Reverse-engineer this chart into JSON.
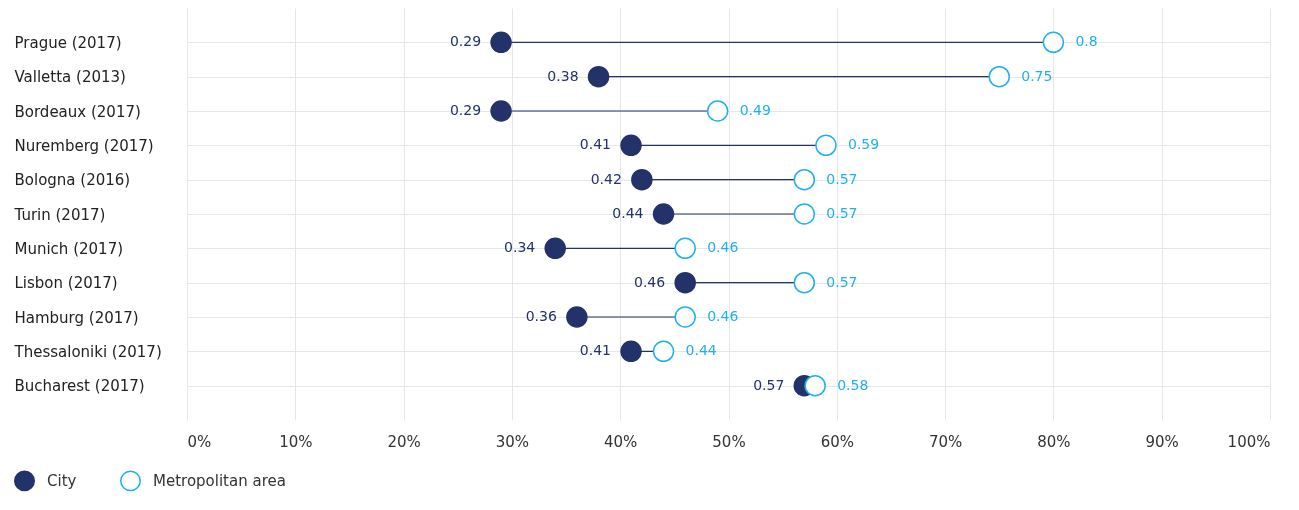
{
  "chart_data": {
    "type": "scatter",
    "orientation": "horizontal",
    "categories": [
      "Prague (2017)",
      "Valletta (2013)",
      "Bordeaux (2017)",
      "Nuremberg (2017)",
      "Bologna (2016)",
      "Turin (2017)",
      "Munich (2017)",
      "Lisbon (2017)",
      "Hamburg (2017)",
      "Thessaloniki (2017)",
      "Bucharest (2017)"
    ],
    "series": [
      {
        "name": "City",
        "color": "#233268",
        "values": [
          0.29,
          0.38,
          0.29,
          0.41,
          0.42,
          0.44,
          0.34,
          0.46,
          0.36,
          0.41,
          0.57
        ]
      },
      {
        "name": "Metropolitan area",
        "color": "#1fb1ec",
        "values": [
          0.8,
          0.75,
          0.49,
          0.59,
          0.57,
          0.57,
          0.46,
          0.57,
          0.46,
          0.44,
          0.58
        ]
      }
    ],
    "xlim": [
      0,
      1
    ],
    "xticks": [
      {
        "value": 0,
        "label": "0%"
      },
      {
        "value": 0.1,
        "label": "10%"
      },
      {
        "value": 0.2,
        "label": "20%"
      },
      {
        "value": 0.3,
        "label": "30%"
      },
      {
        "value": 0.4,
        "label": "40%"
      },
      {
        "value": 0.5,
        "label": "50%"
      },
      {
        "value": 0.6,
        "label": "60%"
      },
      {
        "value": 0.7,
        "label": "70%"
      },
      {
        "value": 0.8,
        "label": "80%"
      },
      {
        "value": 0.9,
        "label": "90%"
      },
      {
        "value": 1,
        "label": "100%"
      }
    ],
    "data_labels": true,
    "grid": true,
    "legend": "bottom left"
  }
}
